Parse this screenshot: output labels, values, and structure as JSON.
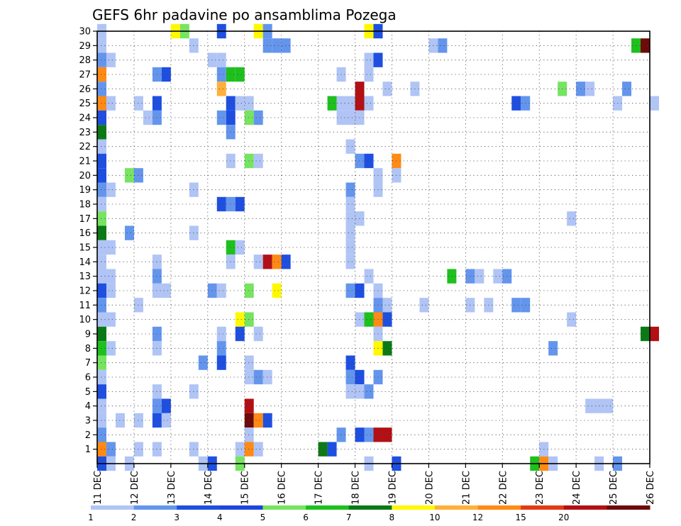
{
  "chart_data": {
    "type": "heatmap",
    "title": "GEFS 6hr padavine po ansamblima Pozega",
    "y_member_ticks": [
      "1",
      "2",
      "3",
      "4",
      "5",
      "6",
      "7",
      "8",
      "9",
      "10",
      "11",
      "12",
      "13",
      "14",
      "15",
      "16",
      "17",
      "18",
      "19",
      "20",
      "21",
      "22",
      "23",
      "24",
      "25",
      "26",
      "27",
      "28",
      "29",
      "30"
    ],
    "x_tick_labels": [
      "11 DEC",
      "12 DEC",
      "13 DEC",
      "14 DEC",
      "15 DEC",
      "16 DEC",
      "17 DEC",
      "18 DEC",
      "19 DEC",
      "20 DEC",
      "21 DEC",
      "22 DEC",
      "23 DEC",
      "24 DEC",
      "25 DEC",
      "26 DEC"
    ],
    "x_range_days": [
      0,
      15
    ],
    "y_range_members": [
      0,
      30
    ],
    "grid": true,
    "colorbar": {
      "level_labels": [
        "1",
        "2",
        "3",
        "4",
        "5",
        "6",
        "7",
        "8",
        "10",
        "12",
        "15",
        "20"
      ],
      "colors": [
        "#b0c4f5",
        "#6495ed",
        "#1e4fe0",
        "#1e46dc",
        "#76e460",
        "#1ec01e",
        "#0b7a16",
        "#fff800",
        "#ffb03a",
        "#ff8a14",
        "#e33a14",
        "#b21014",
        "#6e0a0a"
      ]
    },
    "cells_note": "each cell: [day offset from 11 DEC 00Z in 6h steps, ensemble member, colour class index]",
    "cells": [
      [
        0,
        30,
        0
      ],
      [
        8,
        30,
        7
      ],
      [
        9,
        30,
        4
      ],
      [
        13,
        30,
        2
      ],
      [
        17,
        30,
        7
      ],
      [
        18,
        30,
        1
      ],
      [
        29,
        30,
        7
      ],
      [
        30,
        30,
        2
      ],
      [
        0,
        29,
        0
      ],
      [
        10,
        29,
        0
      ],
      [
        18,
        29,
        1
      ],
      [
        19,
        29,
        1
      ],
      [
        20,
        29,
        1
      ],
      [
        36,
        29,
        0
      ],
      [
        37,
        29,
        1
      ],
      [
        58,
        29,
        5
      ],
      [
        59,
        29,
        12
      ],
      [
        0,
        28,
        1
      ],
      [
        1,
        28,
        0
      ],
      [
        12,
        28,
        0
      ],
      [
        13,
        28,
        0
      ],
      [
        29,
        28,
        0
      ],
      [
        30,
        28,
        2
      ],
      [
        0,
        27,
        9
      ],
      [
        6,
        27,
        1
      ],
      [
        7,
        27,
        2
      ],
      [
        13,
        27,
        1
      ],
      [
        14,
        27,
        5
      ],
      [
        15,
        27,
        5
      ],
      [
        26,
        27,
        0
      ],
      [
        29,
        27,
        0
      ],
      [
        0,
        26,
        1
      ],
      [
        13,
        26,
        8
      ],
      [
        28,
        26,
        11
      ],
      [
        31,
        26,
        0
      ],
      [
        34,
        26,
        0
      ],
      [
        50,
        26,
        4
      ],
      [
        52,
        26,
        1
      ],
      [
        53,
        26,
        0
      ],
      [
        57,
        26,
        1
      ],
      [
        0,
        25,
        9
      ],
      [
        1,
        25,
        0
      ],
      [
        4,
        25,
        0
      ],
      [
        6,
        25,
        2
      ],
      [
        14,
        25,
        2
      ],
      [
        15,
        25,
        0
      ],
      [
        16,
        25,
        0
      ],
      [
        25,
        25,
        5
      ],
      [
        26,
        25,
        0
      ],
      [
        27,
        25,
        0
      ],
      [
        28,
        25,
        11
      ],
      [
        29,
        25,
        0
      ],
      [
        45,
        25,
        2
      ],
      [
        46,
        25,
        1
      ],
      [
        56,
        25,
        0
      ],
      [
        60,
        25,
        0
      ],
      [
        0,
        24,
        2
      ],
      [
        5,
        24,
        0
      ],
      [
        6,
        24,
        1
      ],
      [
        13,
        24,
        1
      ],
      [
        14,
        24,
        2
      ],
      [
        16,
        24,
        4
      ],
      [
        17,
        24,
        1
      ],
      [
        26,
        24,
        0
      ],
      [
        27,
        24,
        0
      ],
      [
        28,
        24,
        0
      ],
      [
        0,
        23,
        6
      ],
      [
        14,
        23,
        1
      ],
      [
        0,
        22,
        0
      ],
      [
        27,
        22,
        0
      ],
      [
        0,
        21,
        2
      ],
      [
        14,
        21,
        0
      ],
      [
        16,
        21,
        4
      ],
      [
        17,
        21,
        0
      ],
      [
        28,
        21,
        1
      ],
      [
        29,
        21,
        2
      ],
      [
        32,
        21,
        9
      ],
      [
        0,
        20,
        2
      ],
      [
        3,
        20,
        4
      ],
      [
        4,
        20,
        1
      ],
      [
        30,
        20,
        0
      ],
      [
        32,
        20,
        0
      ],
      [
        0,
        19,
        1
      ],
      [
        1,
        19,
        0
      ],
      [
        10,
        19,
        0
      ],
      [
        27,
        19,
        1
      ],
      [
        30,
        19,
        0
      ],
      [
        0,
        18,
        0
      ],
      [
        13,
        18,
        2
      ],
      [
        14,
        18,
        1
      ],
      [
        15,
        18,
        2
      ],
      [
        27,
        18,
        0
      ],
      [
        0,
        17,
        4
      ],
      [
        27,
        17,
        0
      ],
      [
        28,
        17,
        0
      ],
      [
        51,
        17,
        0
      ],
      [
        0,
        16,
        6
      ],
      [
        3,
        16,
        1
      ],
      [
        10,
        16,
        0
      ],
      [
        27,
        16,
        0
      ],
      [
        0,
        15,
        0
      ],
      [
        1,
        15,
        0
      ],
      [
        14,
        15,
        5
      ],
      [
        15,
        15,
        0
      ],
      [
        27,
        15,
        0
      ],
      [
        0,
        14,
        0
      ],
      [
        6,
        14,
        0
      ],
      [
        14,
        14,
        0
      ],
      [
        17,
        14,
        0
      ],
      [
        18,
        14,
        11
      ],
      [
        19,
        14,
        9
      ],
      [
        20,
        14,
        2
      ],
      [
        27,
        14,
        0
      ],
      [
        0,
        13,
        0
      ],
      [
        1,
        13,
        0
      ],
      [
        6,
        13,
        1
      ],
      [
        29,
        13,
        0
      ],
      [
        38,
        13,
        5
      ],
      [
        40,
        13,
        1
      ],
      [
        41,
        13,
        0
      ],
      [
        43,
        13,
        0
      ],
      [
        44,
        13,
        1
      ],
      [
        0,
        12,
        2
      ],
      [
        1,
        12,
        0
      ],
      [
        6,
        12,
        0
      ],
      [
        7,
        12,
        0
      ],
      [
        12,
        12,
        1
      ],
      [
        13,
        12,
        0
      ],
      [
        16,
        12,
        4
      ],
      [
        19,
        12,
        7
      ],
      [
        27,
        12,
        1
      ],
      [
        28,
        12,
        2
      ],
      [
        30,
        12,
        0
      ],
      [
        0,
        11,
        1
      ],
      [
        4,
        11,
        0
      ],
      [
        30,
        11,
        1
      ],
      [
        31,
        11,
        0
      ],
      [
        35,
        11,
        0
      ],
      [
        40,
        11,
        0
      ],
      [
        42,
        11,
        0
      ],
      [
        45,
        11,
        1
      ],
      [
        46,
        11,
        1
      ],
      [
        0,
        10,
        0
      ],
      [
        1,
        10,
        0
      ],
      [
        15,
        10,
        7
      ],
      [
        16,
        10,
        4
      ],
      [
        28,
        10,
        0
      ],
      [
        29,
        10,
        5
      ],
      [
        30,
        10,
        9
      ],
      [
        31,
        10,
        2
      ],
      [
        51,
        10,
        0
      ],
      [
        0,
        9,
        6
      ],
      [
        6,
        9,
        1
      ],
      [
        13,
        9,
        0
      ],
      [
        15,
        9,
        2
      ],
      [
        17,
        9,
        0
      ],
      [
        30,
        9,
        0
      ],
      [
        59,
        9,
        6
      ],
      [
        60,
        9,
        11
      ],
      [
        0,
        8,
        5
      ],
      [
        1,
        8,
        0
      ],
      [
        6,
        8,
        0
      ],
      [
        13,
        8,
        1
      ],
      [
        30,
        8,
        7
      ],
      [
        31,
        8,
        6
      ],
      [
        49,
        8,
        1
      ],
      [
        0,
        7,
        4
      ],
      [
        11,
        7,
        1
      ],
      [
        13,
        7,
        2
      ],
      [
        16,
        7,
        0
      ],
      [
        27,
        7,
        2
      ],
      [
        0,
        6,
        0
      ],
      [
        16,
        6,
        0
      ],
      [
        17,
        6,
        1
      ],
      [
        18,
        6,
        0
      ],
      [
        27,
        6,
        1
      ],
      [
        28,
        6,
        2
      ],
      [
        30,
        6,
        1
      ],
      [
        0,
        5,
        2
      ],
      [
        6,
        5,
        0
      ],
      [
        10,
        5,
        0
      ],
      [
        27,
        5,
        0
      ],
      [
        28,
        5,
        0
      ],
      [
        29,
        5,
        1
      ],
      [
        0,
        4,
        0
      ],
      [
        6,
        4,
        1
      ],
      [
        7,
        4,
        2
      ],
      [
        16,
        4,
        11
      ],
      [
        53,
        4,
        0
      ],
      [
        54,
        4,
        0
      ],
      [
        55,
        4,
        0
      ],
      [
        0,
        3,
        0
      ],
      [
        2,
        3,
        0
      ],
      [
        4,
        3,
        0
      ],
      [
        6,
        3,
        2
      ],
      [
        7,
        3,
        0
      ],
      [
        16,
        3,
        12
      ],
      [
        17,
        3,
        9
      ],
      [
        18,
        3,
        2
      ],
      [
        0,
        2,
        1
      ],
      [
        16,
        2,
        0
      ],
      [
        26,
        2,
        1
      ],
      [
        28,
        2,
        2
      ],
      [
        29,
        2,
        1
      ],
      [
        30,
        2,
        11
      ],
      [
        31,
        2,
        11
      ],
      [
        0,
        1,
        9
      ],
      [
        1,
        1,
        1
      ],
      [
        4,
        1,
        0
      ],
      [
        6,
        1,
        0
      ],
      [
        10,
        1,
        0
      ],
      [
        15,
        1,
        0
      ],
      [
        16,
        1,
        9
      ],
      [
        17,
        1,
        0
      ],
      [
        24,
        1,
        6
      ],
      [
        25,
        1,
        2
      ],
      [
        48,
        1,
        0
      ],
      [
        0,
        0,
        2
      ],
      [
        1,
        0,
        0
      ],
      [
        3,
        0,
        0
      ],
      [
        11,
        0,
        0
      ],
      [
        12,
        0,
        2
      ],
      [
        15,
        0,
        4
      ],
      [
        29,
        0,
        0
      ],
      [
        32,
        0,
        2
      ],
      [
        47,
        0,
        5
      ],
      [
        48,
        0,
        9
      ],
      [
        49,
        0,
        0
      ],
      [
        54,
        0,
        0
      ],
      [
        56,
        0,
        1
      ]
    ]
  }
}
